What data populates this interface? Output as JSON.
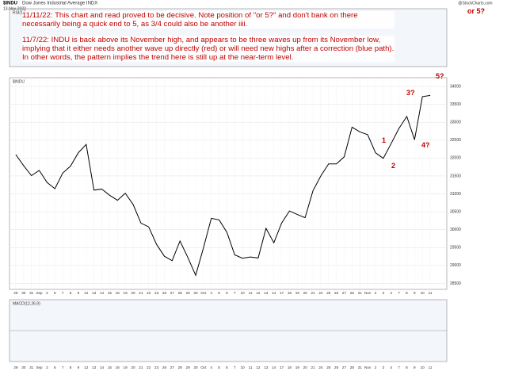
{
  "chart_data": {
    "type": "line",
    "title": "$INDU",
    "subtitle": "Dow Jones Industrial Average INDX",
    "date": "13-Nov-2022",
    "source": "@StockCharts.com",
    "upper_panel": "RSI(14)",
    "lower_panel": "MACD(12,26,9)",
    "annotations": [
      "11/11/22:  This chart and read proved to be decisive.  Note position of \"or 5?\" and don't bank on there necessarily being a quick end to 5, as 3/4 could also be another iiii.",
      "11/7/22:  INDU is back above its November high, and appears to be  three waves up from its November low, implying that it either needs another wave up directly (red) or will need new highs after a correction (blue path).  In other words, the pattern implies the trend here is still up at the near-term level."
    ],
    "wave_labels": [
      "or 5?",
      "5?",
      "3?",
      "1",
      "2",
      "4?"
    ],
    "categories": [
      "29",
      "30",
      "31",
      "Sep",
      "2",
      "6",
      "7",
      "8",
      "9",
      "12",
      "13",
      "14",
      "15",
      "16",
      "19",
      "20",
      "21",
      "22",
      "23",
      "26",
      "27",
      "28",
      "29",
      "30",
      "Oct",
      "4",
      "5",
      "6",
      "7",
      "10",
      "11",
      "12",
      "13",
      "14",
      "17",
      "18",
      "19",
      "20",
      "21",
      "24",
      "25",
      "26",
      "27",
      "28",
      "31",
      "Nov",
      "2",
      "3",
      "4",
      "7",
      "8",
      "9",
      "10",
      "11"
    ],
    "series": [
      {
        "name": "$INDU",
        "color": "#000000",
        "values": [
          32098,
          31790,
          31510,
          31656,
          31318,
          31145,
          31581,
          31775,
          32151,
          32381,
          31105,
          31135,
          30962,
          30822,
          31019,
          30706,
          30184,
          30077,
          29590,
          29260,
          29135,
          29684,
          29226,
          28726,
          29490,
          30317,
          30274,
          29927,
          29297,
          29203,
          29240,
          29211,
          30039,
          29635,
          30186,
          30524,
          30424,
          30334,
          31083,
          31500,
          31837,
          31839,
          32034,
          32862,
          32733,
          32653,
          32148,
          31992,
          32403,
          32827,
          33161,
          32514,
          33716,
          33748
        ]
      }
    ],
    "ylim": [
      28400,
      34200
    ],
    "yticks": [
      28500,
      29000,
      29500,
      30000,
      30500,
      31000,
      31500,
      32000,
      32500,
      33000,
      33500,
      34000
    ],
    "grid": true
  }
}
